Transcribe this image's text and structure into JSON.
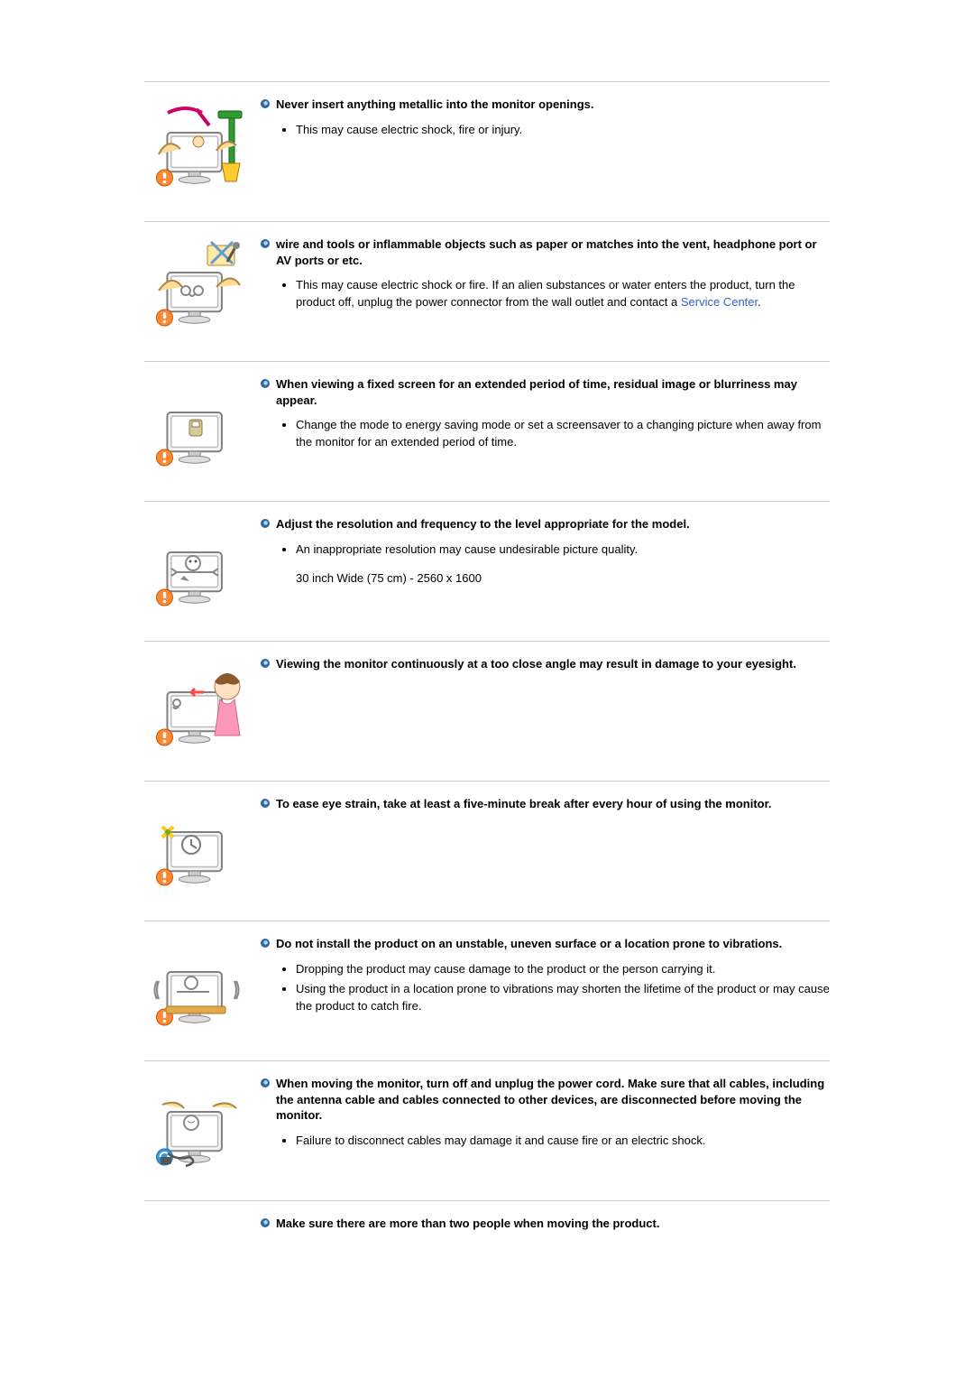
{
  "colors": {
    "rule": "#cccccc",
    "text": "#000000",
    "link": "#3366cc",
    "bullet_outer": "#336699",
    "bullet_inner": "#99ccff"
  },
  "sections": [
    {
      "id": "sec-metallic",
      "heading": "Never insert anything metallic into the monitor openings.",
      "bullets": [
        "This may cause electric shock, fire or injury."
      ],
      "extra": null,
      "link": null
    },
    {
      "id": "sec-wire-tools",
      "heading": "wire and tools or inflammable objects such as paper or matches into the vent, headphone port or AV ports or etc.",
      "bullets": [
        "This may cause electric shock or fire. If an alien substances or water enters the product, turn the product off, unplug the power connector from the wall outlet and contact a "
      ],
      "extra": null,
      "link": {
        "text": "Service Center",
        "trailing": "."
      }
    },
    {
      "id": "sec-fixed-screen",
      "heading": "When viewing a fixed screen for an extended period of time, residual image or blurriness may appear.",
      "bullets": [
        "Change the mode to energy saving mode or set a screensaver to a changing picture when away from the monitor for an extended period of time."
      ],
      "extra": null,
      "link": null
    },
    {
      "id": "sec-resolution",
      "heading": "Adjust the resolution and frequency to the level appropriate for the model.",
      "bullets": [
        "An inappropriate resolution may cause undesirable picture quality."
      ],
      "extra": "30 inch Wide (75 cm) - 2560 x 1600",
      "link": null
    },
    {
      "id": "sec-close-angle",
      "heading": "Viewing the monitor continuously at a too close angle may result in damage to your eyesight.",
      "bullets": [],
      "extra": null,
      "link": null
    },
    {
      "id": "sec-eye-strain",
      "heading": "To ease eye strain, take at least a five-minute break after every hour of using the monitor.",
      "bullets": [],
      "extra": null,
      "link": null
    },
    {
      "id": "sec-unstable",
      "heading": "Do not install the product on an unstable, uneven surface or a location prone to vibrations.",
      "bullets": [
        "Dropping the product may cause damage to the product or the person carrying it.",
        "Using the product in a location prone to vibrations may shorten the lifetime of the product or may cause the product to catch fire."
      ],
      "extra": null,
      "link": null
    },
    {
      "id": "sec-moving",
      "heading": "When moving the monitor, turn off and unplug the power cord. Make sure that all cables, including the antenna cable and cables connected to other devices, are disconnected before moving the monitor.",
      "bullets": [
        "Failure to disconnect cables may damage it and cause fire or an electric shock."
      ],
      "extra": null,
      "link": null
    },
    {
      "id": "sec-two-people",
      "heading": "Make sure there are more than two people when moving the product.",
      "bullets": [],
      "extra": null,
      "link": null
    }
  ]
}
